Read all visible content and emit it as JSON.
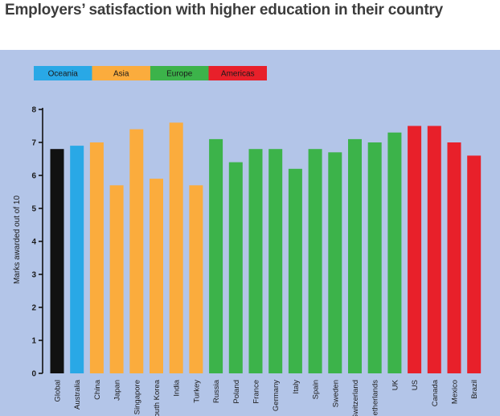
{
  "title": "Employers’ satisfaction with higher education in their country",
  "colors": {
    "panel": "#b3c5e8",
    "Global": "#111111",
    "Oceania": "#29a8e6",
    "Asia": "#fbac3d",
    "Europe": "#3cb34a",
    "Americas": "#e8202a"
  },
  "chart_data": {
    "type": "bar",
    "title": "",
    "xlabel": "",
    "ylabel": "Marks awarded out of 10",
    "ylim": [
      0,
      8
    ],
    "yticks": [
      0,
      1,
      2,
      3,
      4,
      5,
      6,
      7,
      8
    ],
    "grid": false,
    "legend_position": "top-left",
    "legend": [
      "Oceania",
      "Asia",
      "Europe",
      "Americas"
    ],
    "categories": [
      "Global",
      "Australia",
      "China",
      "Japan",
      "Singapore",
      "South Korea",
      "India",
      "Turkey",
      "Russia",
      "Poland",
      "France",
      "Germany",
      "Italy",
      "Spain",
      "Sweden",
      "Switzerland",
      "Netherlands",
      "UK",
      "US",
      "Canada",
      "Mexico",
      "Brazil"
    ],
    "groups": [
      "Global",
      "Oceania",
      "Asia",
      "Asia",
      "Asia",
      "Asia",
      "Asia",
      "Asia",
      "Europe",
      "Europe",
      "Europe",
      "Europe",
      "Europe",
      "Europe",
      "Europe",
      "Europe",
      "Europe",
      "Europe",
      "Americas",
      "Americas",
      "Americas",
      "Americas"
    ],
    "values": [
      6.8,
      6.9,
      7.0,
      5.7,
      7.4,
      5.9,
      7.6,
      5.7,
      7.1,
      6.4,
      6.8,
      6.8,
      6.2,
      6.8,
      6.7,
      7.1,
      7.0,
      7.3,
      7.5,
      7.5,
      7.0,
      6.6
    ]
  }
}
